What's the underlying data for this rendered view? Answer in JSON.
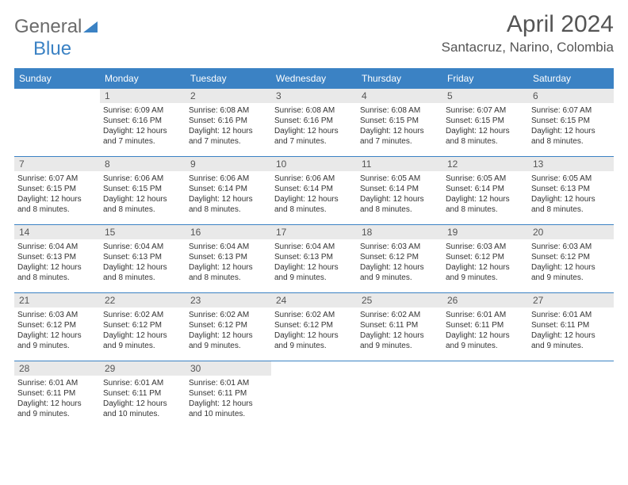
{
  "logo": {
    "general": "General",
    "blue": "Blue"
  },
  "title": "April 2024",
  "location": "Santacruz, Narino, Colombia",
  "colors": {
    "accent": "#3b82c4",
    "daynum_bg": "#e9e9e9",
    "text": "#333333",
    "muted": "#555555",
    "logo_gray": "#6b6b6b"
  },
  "day_headers": [
    "Sunday",
    "Monday",
    "Tuesday",
    "Wednesday",
    "Thursday",
    "Friday",
    "Saturday"
  ],
  "weeks": [
    [
      {
        "blank": true
      },
      {
        "n": "1",
        "sunrise": "6:09 AM",
        "sunset": "6:16 PM",
        "daylight": "12 hours and 7 minutes."
      },
      {
        "n": "2",
        "sunrise": "6:08 AM",
        "sunset": "6:16 PM",
        "daylight": "12 hours and 7 minutes."
      },
      {
        "n": "3",
        "sunrise": "6:08 AM",
        "sunset": "6:16 PM",
        "daylight": "12 hours and 7 minutes."
      },
      {
        "n": "4",
        "sunrise": "6:08 AM",
        "sunset": "6:15 PM",
        "daylight": "12 hours and 7 minutes."
      },
      {
        "n": "5",
        "sunrise": "6:07 AM",
        "sunset": "6:15 PM",
        "daylight": "12 hours and 8 minutes."
      },
      {
        "n": "6",
        "sunrise": "6:07 AM",
        "sunset": "6:15 PM",
        "daylight": "12 hours and 8 minutes."
      }
    ],
    [
      {
        "n": "7",
        "sunrise": "6:07 AM",
        "sunset": "6:15 PM",
        "daylight": "12 hours and 8 minutes."
      },
      {
        "n": "8",
        "sunrise": "6:06 AM",
        "sunset": "6:15 PM",
        "daylight": "12 hours and 8 minutes."
      },
      {
        "n": "9",
        "sunrise": "6:06 AM",
        "sunset": "6:14 PM",
        "daylight": "12 hours and 8 minutes."
      },
      {
        "n": "10",
        "sunrise": "6:06 AM",
        "sunset": "6:14 PM",
        "daylight": "12 hours and 8 minutes."
      },
      {
        "n": "11",
        "sunrise": "6:05 AM",
        "sunset": "6:14 PM",
        "daylight": "12 hours and 8 minutes."
      },
      {
        "n": "12",
        "sunrise": "6:05 AM",
        "sunset": "6:14 PM",
        "daylight": "12 hours and 8 minutes."
      },
      {
        "n": "13",
        "sunrise": "6:05 AM",
        "sunset": "6:13 PM",
        "daylight": "12 hours and 8 minutes."
      }
    ],
    [
      {
        "n": "14",
        "sunrise": "6:04 AM",
        "sunset": "6:13 PM",
        "daylight": "12 hours and 8 minutes."
      },
      {
        "n": "15",
        "sunrise": "6:04 AM",
        "sunset": "6:13 PM",
        "daylight": "12 hours and 8 minutes."
      },
      {
        "n": "16",
        "sunrise": "6:04 AM",
        "sunset": "6:13 PM",
        "daylight": "12 hours and 8 minutes."
      },
      {
        "n": "17",
        "sunrise": "6:04 AM",
        "sunset": "6:13 PM",
        "daylight": "12 hours and 9 minutes."
      },
      {
        "n": "18",
        "sunrise": "6:03 AM",
        "sunset": "6:12 PM",
        "daylight": "12 hours and 9 minutes."
      },
      {
        "n": "19",
        "sunrise": "6:03 AM",
        "sunset": "6:12 PM",
        "daylight": "12 hours and 9 minutes."
      },
      {
        "n": "20",
        "sunrise": "6:03 AM",
        "sunset": "6:12 PM",
        "daylight": "12 hours and 9 minutes."
      }
    ],
    [
      {
        "n": "21",
        "sunrise": "6:03 AM",
        "sunset": "6:12 PM",
        "daylight": "12 hours and 9 minutes."
      },
      {
        "n": "22",
        "sunrise": "6:02 AM",
        "sunset": "6:12 PM",
        "daylight": "12 hours and 9 minutes."
      },
      {
        "n": "23",
        "sunrise": "6:02 AM",
        "sunset": "6:12 PM",
        "daylight": "12 hours and 9 minutes."
      },
      {
        "n": "24",
        "sunrise": "6:02 AM",
        "sunset": "6:12 PM",
        "daylight": "12 hours and 9 minutes."
      },
      {
        "n": "25",
        "sunrise": "6:02 AM",
        "sunset": "6:11 PM",
        "daylight": "12 hours and 9 minutes."
      },
      {
        "n": "26",
        "sunrise": "6:01 AM",
        "sunset": "6:11 PM",
        "daylight": "12 hours and 9 minutes."
      },
      {
        "n": "27",
        "sunrise": "6:01 AM",
        "sunset": "6:11 PM",
        "daylight": "12 hours and 9 minutes."
      }
    ],
    [
      {
        "n": "28",
        "sunrise": "6:01 AM",
        "sunset": "6:11 PM",
        "daylight": "12 hours and 9 minutes."
      },
      {
        "n": "29",
        "sunrise": "6:01 AM",
        "sunset": "6:11 PM",
        "daylight": "12 hours and 10 minutes."
      },
      {
        "n": "30",
        "sunrise": "6:01 AM",
        "sunset": "6:11 PM",
        "daylight": "12 hours and 10 minutes."
      },
      {
        "blank": true
      },
      {
        "blank": true
      },
      {
        "blank": true
      },
      {
        "blank": true
      }
    ]
  ],
  "labels": {
    "sunrise": "Sunrise:",
    "sunset": "Sunset:",
    "daylight": "Daylight:"
  }
}
